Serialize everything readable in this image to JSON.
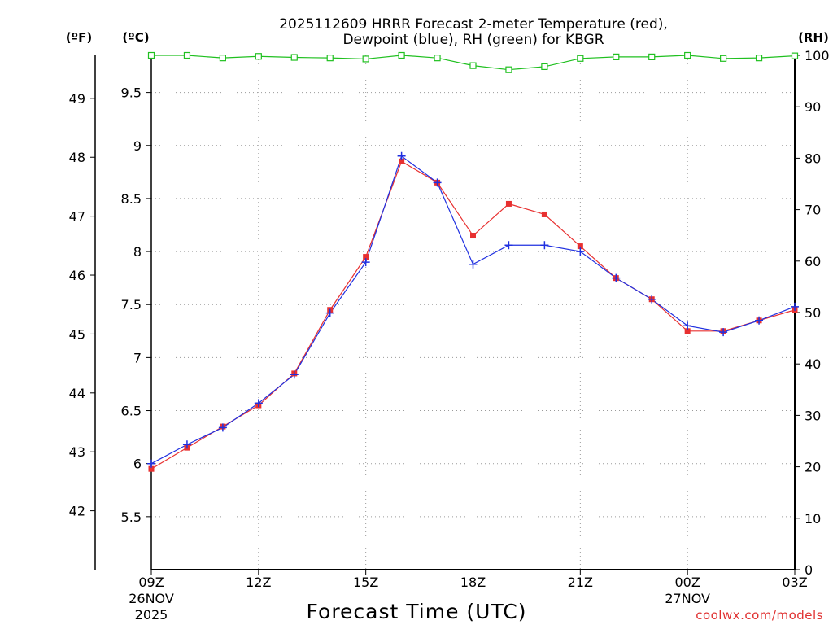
{
  "chart_data": {
    "type": "line",
    "title_line1": "2025112609 HRRR Forecast 2-meter Temperature (red),",
    "title_line2": "Dewpoint (blue), RH (green) for KBGR",
    "units": {
      "fahrenheit": "(ºF)",
      "celsius": "(ºC)",
      "rh": "(RH)"
    },
    "xlabel": "Forecast Time (UTC)",
    "credit": "coolwx.com/models",
    "x_hours": [
      0,
      1,
      2,
      3,
      4,
      5,
      6,
      7,
      8,
      9,
      10,
      11,
      12,
      13,
      14,
      15,
      16,
      17,
      18
    ],
    "x_ticks": [
      {
        "hour": 0,
        "label": "09Z",
        "line2": "26NOV",
        "line3": "2025"
      },
      {
        "hour": 3,
        "label": "12Z"
      },
      {
        "hour": 6,
        "label": "15Z"
      },
      {
        "hour": 9,
        "label": "18Z"
      },
      {
        "hour": 12,
        "label": "21Z"
      },
      {
        "hour": 15,
        "label": "00Z",
        "line2": "27NOV"
      },
      {
        "hour": 18,
        "label": "03Z"
      }
    ],
    "ylim_celsius": [
      5.0,
      9.85
    ],
    "celsius_ticks": [
      "5.5",
      "6",
      "6.5",
      "7",
      "7.5",
      "8",
      "8.5",
      "9",
      "9.5"
    ],
    "fahrenheit_ticks": [
      "42",
      "43",
      "44",
      "45",
      "46",
      "47",
      "48",
      "49"
    ],
    "rh_ticks": [
      "0",
      "10",
      "20",
      "30",
      "40",
      "50",
      "60",
      "70",
      "80",
      "90",
      "100"
    ],
    "ylim_rh": [
      0,
      100
    ],
    "series": [
      {
        "name": "Temperature",
        "color": "#e83030",
        "values": [
          5.95,
          6.15,
          6.35,
          6.55,
          6.85,
          7.45,
          7.95,
          8.85,
          8.65,
          8.15,
          8.45,
          8.35,
          8.05,
          7.75,
          7.55,
          7.25,
          7.25,
          7.35,
          7.45
        ]
      },
      {
        "name": "Dewpoint",
        "color": "#2030e0",
        "values": [
          6.0,
          6.18,
          6.34,
          6.57,
          6.84,
          7.42,
          7.9,
          8.9,
          8.65,
          7.88,
          8.06,
          8.06,
          8.0,
          7.75,
          7.55,
          7.3,
          7.24,
          7.35,
          7.48
        ]
      },
      {
        "name": "RH",
        "color": "#20c020",
        "values": [
          100,
          100,
          99.5,
          99.8,
          99.6,
          99.5,
          99.3,
          100,
          99.5,
          98,
          97.2,
          97.8,
          99.4,
          99.7,
          99.7,
          100,
          99.4,
          99.5,
          99.9
        ]
      }
    ]
  }
}
